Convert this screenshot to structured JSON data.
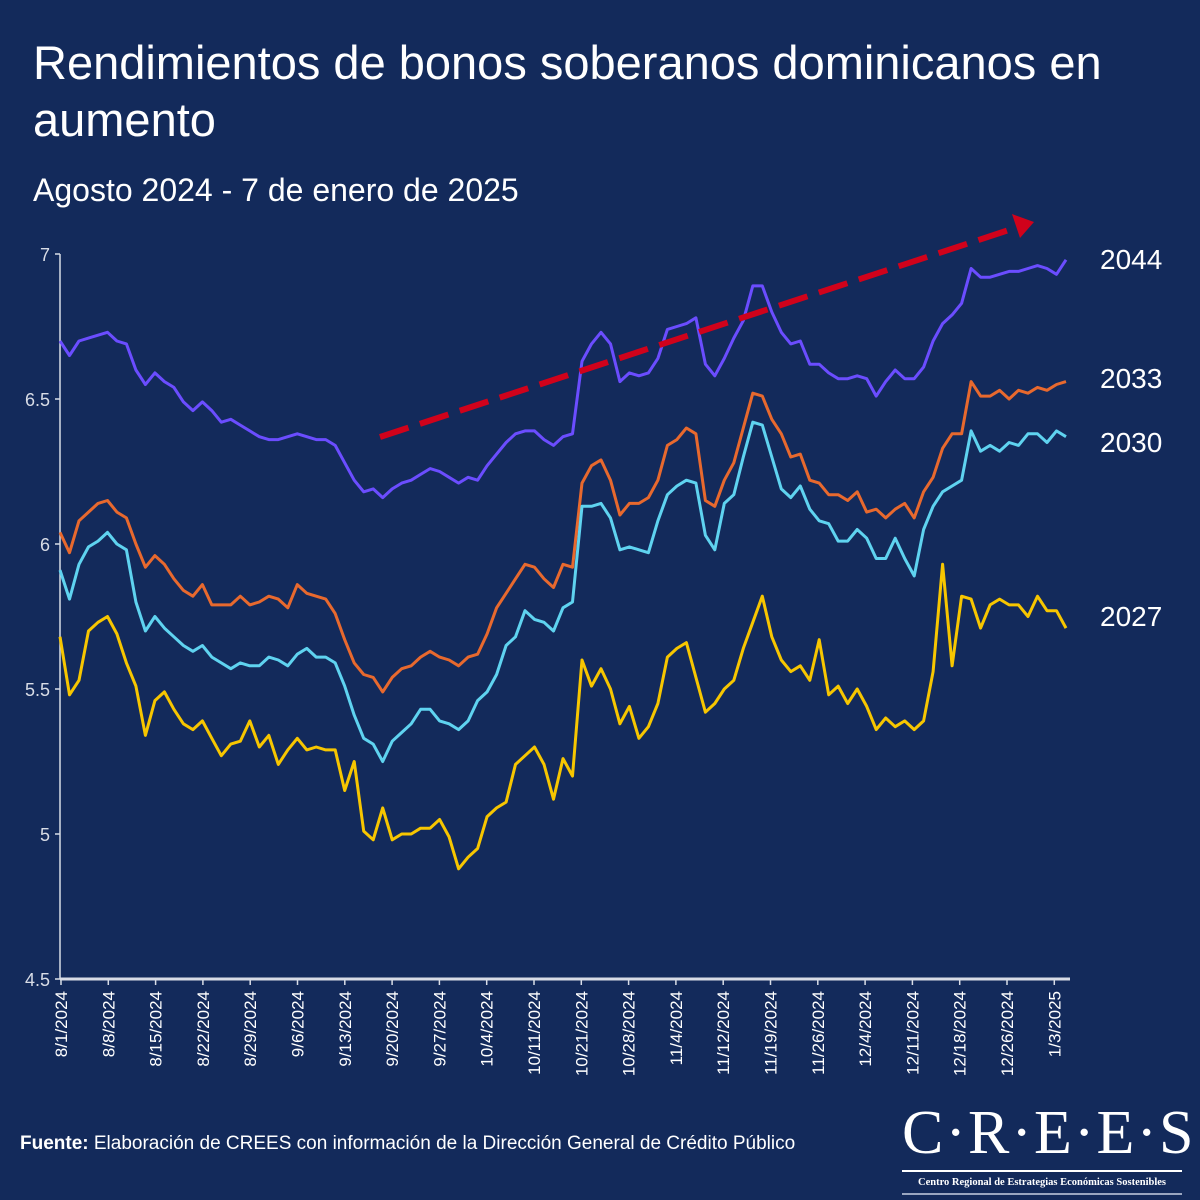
{
  "header": {
    "title": "Rendimientos de bonos soberanos dominicanos en aumento",
    "subtitle": "Agosto 2024 - 7 de enero de 2025"
  },
  "footer": {
    "source_label": "Fuente:",
    "source_text": " Elaboración de CREES con información de la Dirección General de Crédito Público",
    "logo_text": "C·R·E·E·S",
    "logo_subtitle": "Centro Regional de Estrategias Económicas Sostenibles"
  },
  "chart_data": {
    "type": "line",
    "title": "Rendimientos de bonos soberanos dominicanos en aumento",
    "subtitle": "Agosto 2024 - 7 de enero de 2025",
    "xlabel": "",
    "ylabel": "",
    "ylim": [
      4.5,
      7
    ],
    "yticks": [
      "4.5",
      "5",
      "5.5",
      "6",
      "6.5",
      "7"
    ],
    "x_tick_labels": [
      "8/1/2024",
      "8/8/2024",
      "8/15/2024",
      "8/22/2024",
      "8/29/2024",
      "9/6/2024",
      "9/13/2024",
      "9/20/2024",
      "9/27/2024",
      "10/4/2024",
      "10/11/2024",
      "10/21/2024",
      "10/28/2024",
      "11/4/2024",
      "11/12/2024",
      "11/19/2024",
      "11/26/2024",
      "12/4/2024",
      "12/11/2024",
      "12/18/2024",
      "12/26/2024",
      "1/3/2025"
    ],
    "grid": false,
    "legend": "direct labels at right end of lines",
    "annotation": "red dashed upward trend arrow",
    "colors": {
      "2044": "#6b4dff",
      "2033": "#e8692e",
      "2030": "#5fd3f0",
      "2027": "#f7c600",
      "arrow": "#d0021b",
      "background": "#132a5b"
    },
    "series": [
      {
        "name": "2044",
        "values": [
          6.7,
          6.65,
          6.7,
          6.71,
          6.72,
          6.73,
          6.7,
          6.69,
          6.6,
          6.55,
          6.59,
          6.56,
          6.54,
          6.49,
          6.46,
          6.49,
          6.46,
          6.42,
          6.43,
          6.41,
          6.39,
          6.37,
          6.36,
          6.36,
          6.37,
          6.38,
          6.37,
          6.36,
          6.36,
          6.34,
          6.28,
          6.22,
          6.18,
          6.19,
          6.16,
          6.19,
          6.21,
          6.22,
          6.24,
          6.26,
          6.25,
          6.23,
          6.21,
          6.23,
          6.22,
          6.27,
          6.31,
          6.35,
          6.38,
          6.39,
          6.39,
          6.36,
          6.34,
          6.37,
          6.38,
          6.63,
          6.69,
          6.73,
          6.69,
          6.56,
          6.59,
          6.58,
          6.59,
          6.64,
          6.74,
          6.75,
          6.76,
          6.78,
          6.62,
          6.58,
          6.64,
          6.71,
          6.77,
          6.89,
          6.89,
          6.8,
          6.73,
          6.69,
          6.7,
          6.62,
          6.62,
          6.59,
          6.57,
          6.57,
          6.58,
          6.57,
          6.51,
          6.56,
          6.6,
          6.57,
          6.57,
          6.61,
          6.7,
          6.76,
          6.79,
          6.83,
          6.95,
          6.92,
          6.92,
          6.93,
          6.94,
          6.94,
          6.95,
          6.96,
          6.95,
          6.93,
          6.98
        ]
      },
      {
        "name": "2033",
        "values": [
          6.04,
          5.97,
          6.08,
          6.11,
          6.14,
          6.15,
          6.11,
          6.09,
          6.0,
          5.92,
          5.96,
          5.93,
          5.88,
          5.84,
          5.82,
          5.86,
          5.79,
          5.79,
          5.79,
          5.82,
          5.79,
          5.8,
          5.82,
          5.81,
          5.78,
          5.86,
          5.83,
          5.82,
          5.81,
          5.76,
          5.67,
          5.59,
          5.55,
          5.54,
          5.49,
          5.54,
          5.57,
          5.58,
          5.61,
          5.63,
          5.61,
          5.6,
          5.58,
          5.61,
          5.62,
          5.69,
          5.78,
          5.83,
          5.88,
          5.93,
          5.92,
          5.88,
          5.85,
          5.93,
          5.92,
          6.21,
          6.27,
          6.29,
          6.22,
          6.1,
          6.14,
          6.14,
          6.16,
          6.22,
          6.34,
          6.36,
          6.4,
          6.38,
          6.15,
          6.13,
          6.22,
          6.28,
          6.4,
          6.52,
          6.51,
          6.43,
          6.38,
          6.3,
          6.31,
          6.22,
          6.21,
          6.17,
          6.17,
          6.15,
          6.18,
          6.11,
          6.12,
          6.09,
          6.12,
          6.14,
          6.09,
          6.18,
          6.23,
          6.33,
          6.38,
          6.38,
          6.56,
          6.51,
          6.51,
          6.53,
          6.5,
          6.53,
          6.52,
          6.54,
          6.53,
          6.55,
          6.56
        ]
      },
      {
        "name": "2030",
        "values": [
          5.91,
          5.81,
          5.93,
          5.99,
          6.01,
          6.04,
          6.0,
          5.98,
          5.8,
          5.7,
          5.75,
          5.71,
          5.68,
          5.65,
          5.63,
          5.65,
          5.61,
          5.59,
          5.57,
          5.59,
          5.58,
          5.58,
          5.61,
          5.6,
          5.58,
          5.62,
          5.64,
          5.61,
          5.61,
          5.59,
          5.51,
          5.41,
          5.33,
          5.31,
          5.25,
          5.32,
          5.35,
          5.38,
          5.43,
          5.43,
          5.39,
          5.38,
          5.36,
          5.39,
          5.46,
          5.49,
          5.55,
          5.65,
          5.68,
          5.77,
          5.74,
          5.73,
          5.7,
          5.78,
          5.8,
          6.13,
          6.13,
          6.14,
          6.09,
          5.98,
          5.99,
          5.98,
          5.97,
          6.08,
          6.17,
          6.2,
          6.22,
          6.21,
          6.03,
          5.98,
          6.14,
          6.17,
          6.3,
          6.42,
          6.41,
          6.3,
          6.19,
          6.16,
          6.2,
          6.12,
          6.08,
          6.07,
          6.01,
          6.01,
          6.05,
          6.02,
          5.95,
          5.95,
          6.02,
          5.95,
          5.89,
          6.05,
          6.13,
          6.18,
          6.2,
          6.22,
          6.39,
          6.32,
          6.34,
          6.32,
          6.35,
          6.34,
          6.38,
          6.38,
          6.35,
          6.39,
          6.37
        ]
      },
      {
        "name": "2027",
        "values": [
          5.68,
          5.48,
          5.53,
          5.7,
          5.73,
          5.75,
          5.69,
          5.59,
          5.51,
          5.34,
          5.46,
          5.49,
          5.43,
          5.38,
          5.36,
          5.39,
          5.33,
          5.27,
          5.31,
          5.32,
          5.39,
          5.3,
          5.34,
          5.24,
          5.29,
          5.33,
          5.29,
          5.3,
          5.29,
          5.29,
          5.15,
          5.25,
          5.01,
          4.98,
          5.09,
          4.98,
          5.0,
          5.0,
          5.02,
          5.02,
          5.05,
          4.99,
          4.88,
          4.92,
          4.95,
          5.06,
          5.09,
          5.11,
          5.24,
          5.27,
          5.3,
          5.24,
          5.12,
          5.26,
          5.2,
          5.6,
          5.51,
          5.57,
          5.5,
          5.38,
          5.44,
          5.33,
          5.37,
          5.45,
          5.61,
          5.64,
          5.66,
          5.54,
          5.42,
          5.45,
          5.5,
          5.53,
          5.64,
          5.73,
          5.82,
          5.68,
          5.6,
          5.56,
          5.58,
          5.53,
          5.67,
          5.48,
          5.51,
          5.45,
          5.5,
          5.44,
          5.36,
          5.4,
          5.37,
          5.39,
          5.36,
          5.39,
          5.56,
          5.93,
          5.58,
          5.82,
          5.81,
          5.71,
          5.79,
          5.81,
          5.79,
          5.79,
          5.75,
          5.82,
          5.77,
          5.77,
          5.71
        ]
      }
    ]
  }
}
